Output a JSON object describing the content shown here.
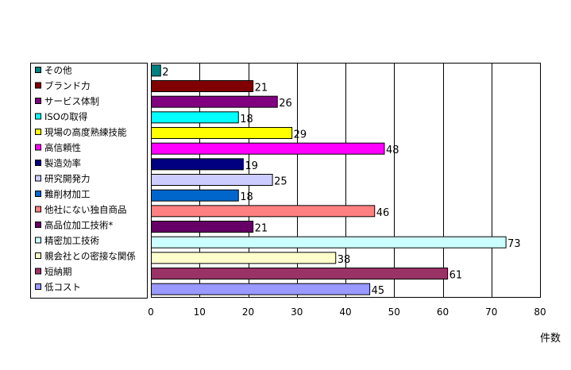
{
  "chart_data": {
    "type": "bar",
    "orientation": "horizontal",
    "categories": [
      "その他",
      "ブランド力",
      "サービス体制",
      "ISOの取得",
      "現場の高度熟練技能",
      "高信頼性",
      "製造効率",
      "研究開発力",
      "難削材加工",
      "他社にない独自商品",
      "高品位加工技術*",
      "精密加工技術",
      "親会社との密接な関係",
      "短納期",
      "低コスト"
    ],
    "values": [
      2,
      21,
      26,
      18,
      29,
      48,
      19,
      25,
      18,
      46,
      21,
      73,
      38,
      61,
      45
    ],
    "colors": [
      "#008080",
      "#800000",
      "#800080",
      "#00FFFF",
      "#FFFF00",
      "#FF00FF",
      "#000080",
      "#CCCCFF",
      "#0066CC",
      "#FF8080",
      "#660066",
      "#CCFFFF",
      "#FFFFCC",
      "#993366",
      "#9999FF"
    ],
    "xlabel": "件数",
    "xlim": [
      0,
      80
    ],
    "xticks": [
      0,
      10,
      20,
      30,
      40,
      50,
      60,
      70,
      80
    ],
    "grid": true,
    "legend_position": "left"
  }
}
